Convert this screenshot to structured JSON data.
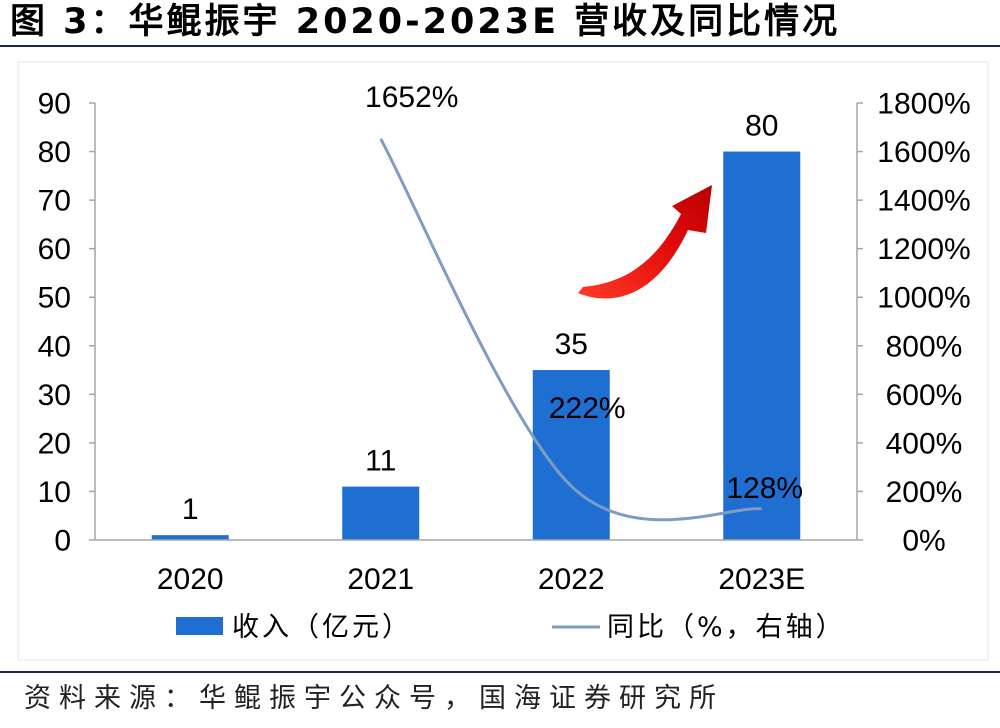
{
  "source": "资料来源：华鲲振宇公众号，国海证券研究所",
  "chart_data": {
    "type": "bar",
    "title": "图 3：华鲲振宇 2020-2023E 营收及同比情况",
    "categories": [
      "2020",
      "2021",
      "2022",
      "2023E"
    ],
    "series": [
      {
        "name": "收入（亿元）",
        "type": "bar",
        "axis": "left",
        "values": [
          1,
          11,
          35,
          80
        ],
        "value_labels": [
          "1",
          "11",
          "35",
          "80"
        ],
        "color": "#1f6fd3"
      },
      {
        "name": "同比（%，右轴）",
        "type": "line",
        "axis": "right",
        "smooth": true,
        "values": [
          null,
          1652,
          222,
          128
        ],
        "value_labels": [
          null,
          "1652%",
          "222%",
          "128%"
        ],
        "color": "#7f9dc4"
      }
    ],
    "ylim": [
      0,
      90
    ],
    "yticks": [
      "0",
      "10",
      "20",
      "30",
      "40",
      "50",
      "60",
      "70",
      "80",
      "90"
    ],
    "y2lim": [
      0,
      1800
    ],
    "y2ticks": [
      "0%",
      "200%",
      "400%",
      "600%",
      "800%",
      "1000%",
      "1200%",
      "1400%",
      "1600%",
      "1800%"
    ],
    "grid": false,
    "legend": "bottom"
  }
}
